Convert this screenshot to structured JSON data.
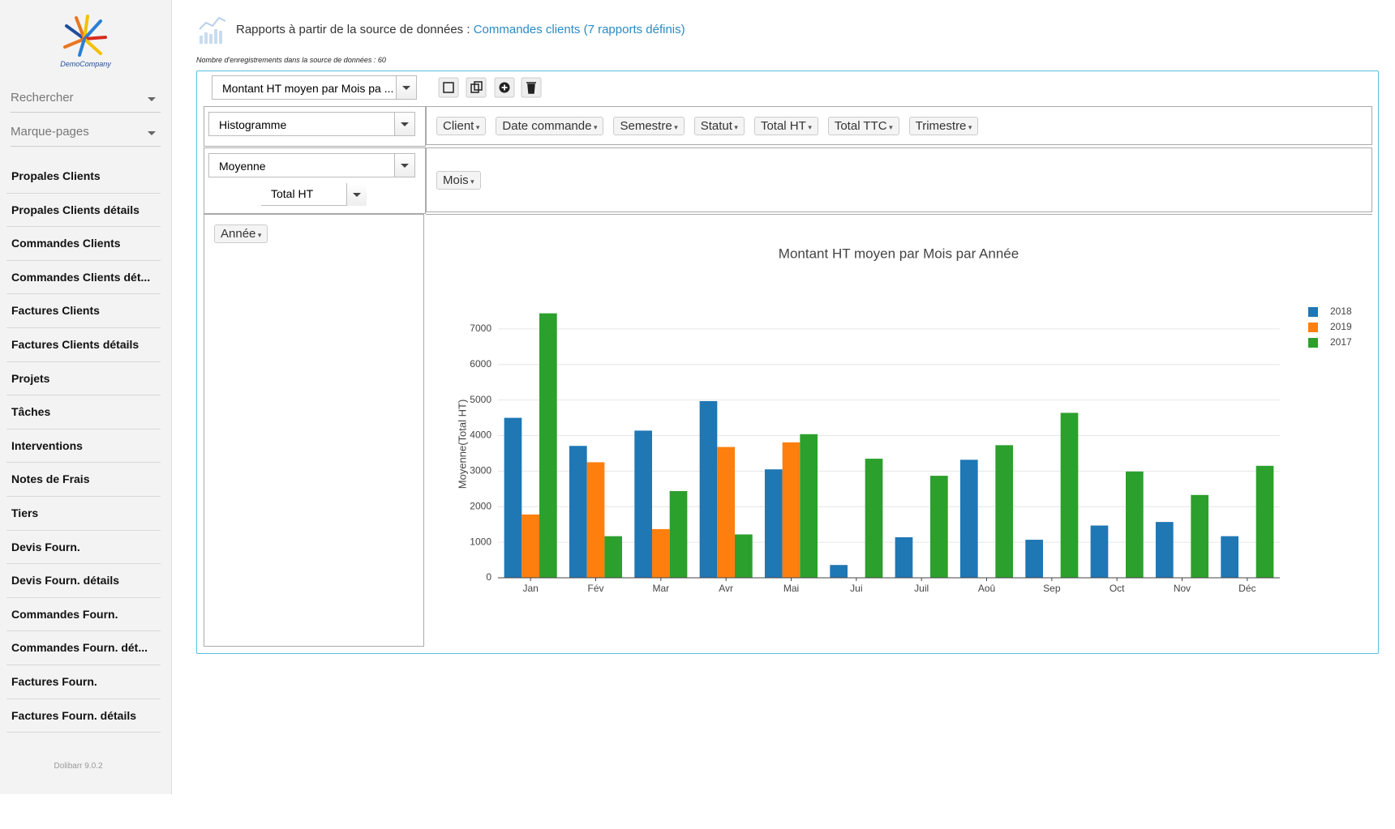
{
  "sidebar": {
    "company": "DemoCompany",
    "search": "Rechercher",
    "bookmarks": "Marque-pages",
    "menu": [
      "Propales Clients",
      "Propales Clients détails",
      "Commandes Clients",
      "Commandes Clients dét...",
      "Factures Clients",
      "Factures Clients détails",
      "Projets",
      "Tâches",
      "Interventions",
      "Notes de Frais",
      "Tiers",
      "Devis Fourn.",
      "Devis Fourn. détails",
      "Commandes Fourn.",
      "Commandes Fourn. dét...",
      "Factures Fourn.",
      "Factures Fourn. détails"
    ],
    "version": "Dolibarr 9.0.2"
  },
  "header": {
    "title": "Rapports à partir de la source de données :",
    "link": "Commandes clients (7 rapports définis)",
    "subtitle": "Nombre d'enregistrements dans la source de données : 60"
  },
  "report": {
    "selected": "Montant HT moyen par Mois pa ...",
    "renderer": "Histogramme",
    "aggregator": "Moyenne",
    "aggregator_field": "Total HT",
    "unused_fields": [
      "Client",
      "Date commande",
      "Semestre",
      "Statut",
      "Total HT",
      "Total TTC",
      "Trimestre"
    ],
    "column_fields": [
      "Mois"
    ],
    "row_fields": [
      "Année"
    ]
  },
  "chart_data": {
    "type": "bar",
    "title": "Montant HT moyen par Mois par Année",
    "y_label": "Moyenne(Total HT)",
    "categories": [
      "Jan",
      "Fév",
      "Mar",
      "Avr",
      "Mai",
      "Jui",
      "Juil",
      "Aoû",
      "Sep",
      "Oct",
      "Nov",
      "Déc"
    ],
    "series": [
      {
        "name": "2018",
        "color": "#1f77b4",
        "values": [
          4500,
          3710,
          4140,
          4970,
          3050,
          360,
          1140,
          3320,
          1070,
          1470,
          1570,
          1170
        ]
      },
      {
        "name": "2019",
        "color": "#ff7f0e",
        "values": [
          1780,
          3250,
          1370,
          3680,
          3810,
          null,
          null,
          null,
          null,
          null,
          null,
          null
        ]
      },
      {
        "name": "2017",
        "color": "#2ca02c",
        "values": [
          7440,
          1170,
          2440,
          1220,
          4040,
          3350,
          2870,
          3730,
          4640,
          2990,
          2330,
          3150
        ]
      }
    ],
    "ylim": [
      0,
      7500
    ],
    "yticks": [
      0,
      1000,
      2000,
      3000,
      4000,
      5000,
      6000,
      7000
    ],
    "grid": true,
    "legend": "top-right"
  }
}
